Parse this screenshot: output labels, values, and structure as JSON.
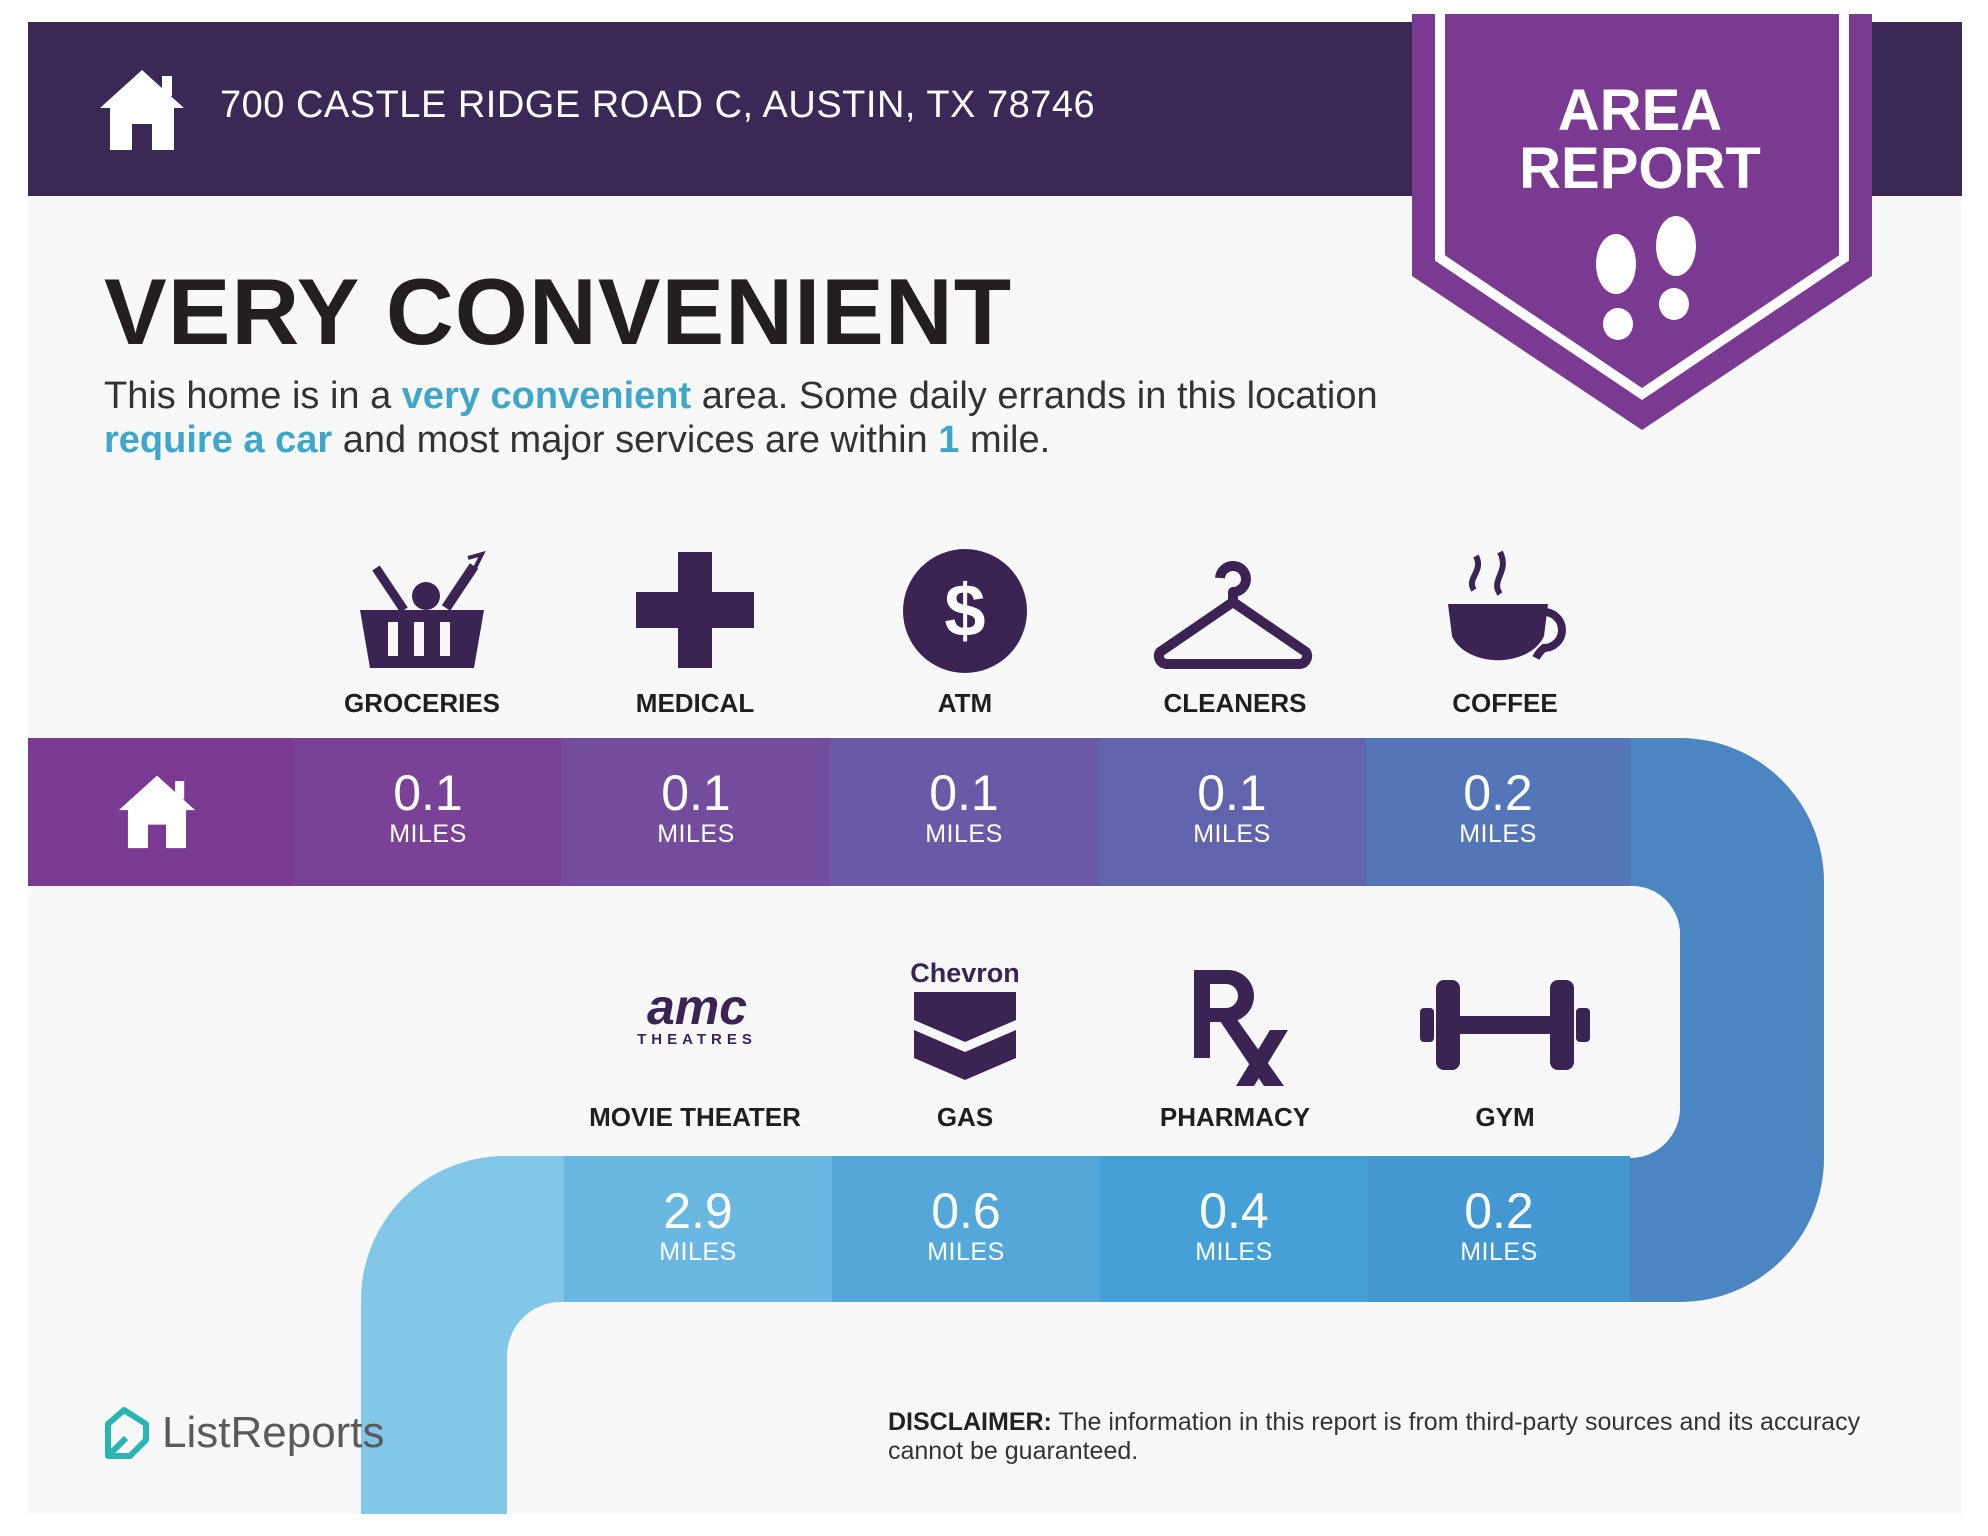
{
  "header": {
    "address": "700 CASTLE RIDGE ROAD C, AUSTIN, TX 78746",
    "badge_line1": "AREA",
    "badge_line2": "REPORT"
  },
  "headline": "VERY CONVENIENT",
  "summary": {
    "t1": "This home is in a ",
    "h1": "very convenient",
    "t2": " area. Some daily errands in this location ",
    "h2": "require a car",
    "t3": " and most major services are within ",
    "h3": "1",
    "t4": " mile."
  },
  "services": [
    {
      "label": "GROCERIES",
      "distance": "0.1",
      "unit": "MILES",
      "icon": "grocery-basket-icon"
    },
    {
      "label": "MEDICAL",
      "distance": "0.1",
      "unit": "MILES",
      "icon": "medical-cross-icon"
    },
    {
      "label": "ATM",
      "distance": "0.1",
      "unit": "MILES",
      "icon": "dollar-coin-icon"
    },
    {
      "label": "CLEANERS",
      "distance": "0.1",
      "unit": "MILES",
      "icon": "hanger-icon"
    },
    {
      "label": "COFFEE",
      "distance": "0.2",
      "unit": "MILES",
      "icon": "coffee-cup-icon"
    },
    {
      "label": "MOVIE THEATER",
      "distance": "2.9",
      "unit": "MILES",
      "icon": "amc-logo",
      "logo_text": "amc",
      "logo_sub": "THEATRES"
    },
    {
      "label": "GAS",
      "distance": "0.6",
      "unit": "MILES",
      "icon": "chevron-logo",
      "logo_text": "Chevron"
    },
    {
      "label": "PHARMACY",
      "distance": "0.4",
      "unit": "MILES",
      "icon": "rx-icon"
    },
    {
      "label": "GYM",
      "distance": "0.2",
      "unit": "MILES",
      "icon": "dumbbell-icon"
    }
  ],
  "footer": {
    "brand": "ListReports",
    "disclaimer_label": "DISCLAIMER:",
    "disclaimer_text": " The information in this report is from third-party sources and its accuracy cannot be guaranteed."
  },
  "colors": {
    "header": "#3a2856",
    "badge": "#7b3a91",
    "icon": "#3b2454",
    "highlight": "#3ea7c9",
    "path_row1": [
      "#7b3a91",
      "#7a4296",
      "#734c9d",
      "#6b58a6",
      "#6163ad",
      "#5476b8",
      "#4f86bf"
    ],
    "path_row2": [
      "#82c6e8",
      "#6ab8e2",
      "#53a8d9",
      "#45a0d7",
      "#4498d2",
      "#4a88c6"
    ]
  }
}
